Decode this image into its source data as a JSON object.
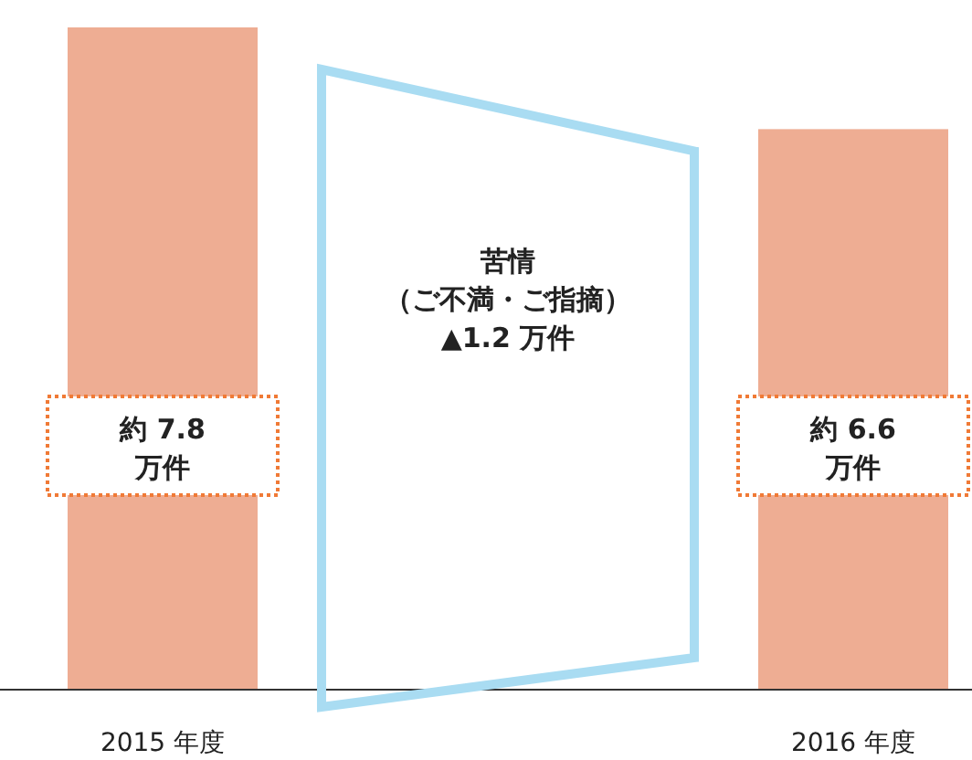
{
  "chart_data": {
    "type": "bar",
    "categories": [
      "2015 年度",
      "2016 年度"
    ],
    "values": [
      7.8,
      6.6
    ],
    "color": "#eead93",
    "value_labels": [
      "約 7.8\n万件",
      "約 6.6\n万件"
    ],
    "annotations": [
      "苦情",
      "（ご不満・ご指摘）",
      "▲1.2 万件"
    ]
  }
}
